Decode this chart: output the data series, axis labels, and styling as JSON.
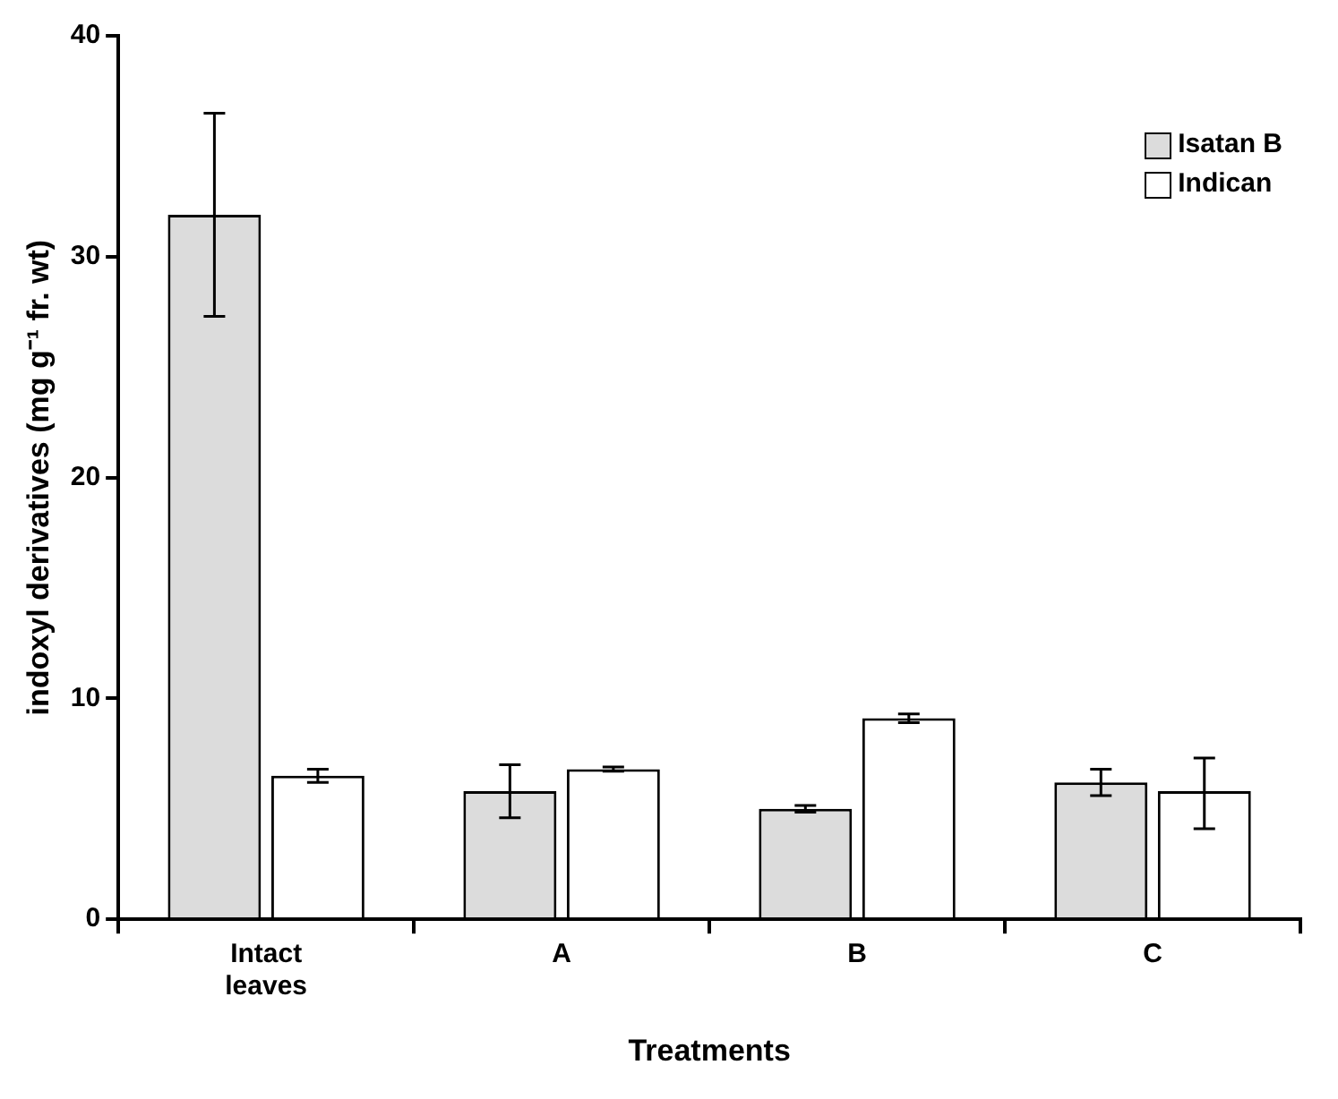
{
  "chart_data": {
    "type": "bar",
    "xlabel": "Treatments",
    "ylabel": "indoxyl derivatives (mg g⁻¹ fr. wt)",
    "categories": [
      "Intact leaves",
      "A",
      "B",
      "C"
    ],
    "series": [
      {
        "name": "Isatan B",
        "color": "#dcdcdc",
        "values": [
          31.9,
          5.8,
          5.0,
          6.2
        ],
        "errors": [
          4.6,
          1.2,
          0.15,
          0.6
        ]
      },
      {
        "name": "Indican",
        "color": "#ffffff",
        "values": [
          6.5,
          6.8,
          9.1,
          5.8
        ],
        "errors": [
          0.3,
          0.1,
          0.2,
          [
            4.1,
            7.3
          ]
        ]
      }
    ],
    "ylim": [
      0,
      40
    ],
    "yticks": [
      0,
      10,
      20,
      30,
      40
    ],
    "grid": false,
    "legend": "top right"
  }
}
